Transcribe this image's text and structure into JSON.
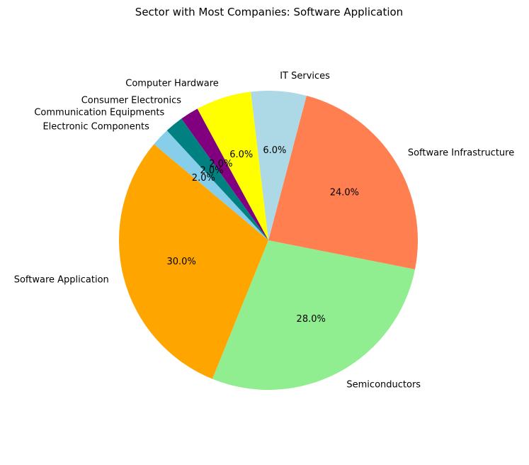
{
  "chart_data": {
    "type": "pie",
    "title": "Sector with Most Companies: Software Application",
    "start_angle_deg": 140,
    "direction": "counterclockwise",
    "slices": [
      {
        "label": "Software Application",
        "value": 30.0,
        "pct_text": "30.0%",
        "color": "#ffa500"
      },
      {
        "label": "Semiconductors",
        "value": 28.0,
        "pct_text": "28.0%",
        "color": "#90ee90"
      },
      {
        "label": "Software Infrastructure",
        "value": 24.0,
        "pct_text": "24.0%",
        "color": "#ff7f50"
      },
      {
        "label": "IT Services",
        "value": 6.0,
        "pct_text": "6.0%",
        "color": "#add8e6"
      },
      {
        "label": "Computer Hardware",
        "value": 6.0,
        "pct_text": "6.0%",
        "color": "#ffff00"
      },
      {
        "label": "Consumer Electronics",
        "value": 2.0,
        "pct_text": "2.0%",
        "color": "#800080"
      },
      {
        "label": "Communication Equipments",
        "value": 2.0,
        "pct_text": "2.0%",
        "color": "#008080"
      },
      {
        "label": "Electronic Components",
        "value": 2.0,
        "pct_text": "2.0%",
        "color": "#87ceeb"
      }
    ]
  }
}
